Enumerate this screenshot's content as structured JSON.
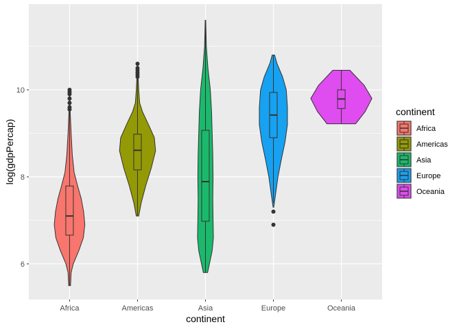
{
  "chart_data": {
    "type": "violin",
    "xlabel": "continent",
    "ylabel": "log(gdpPercap)",
    "categories": [
      "Africa",
      "Americas",
      "Asia",
      "Europe",
      "Oceania"
    ],
    "ylim": [
      5.18,
      11.97
    ],
    "yticks": [
      6,
      8,
      10
    ],
    "grid": true,
    "legend": {
      "title": "continent",
      "position": "right",
      "entries": [
        "Africa",
        "Americas",
        "Asia",
        "Europe",
        "Oceania"
      ]
    },
    "colors": [
      "#F8766D",
      "#949A05",
      "#1BB96C",
      "#17A1F1",
      "#DF4CEF"
    ],
    "series": [
      {
        "name": "Africa",
        "density": [
          [
            5.5,
            0.03
          ],
          [
            5.8,
            0.05
          ],
          [
            6.0,
            0.12
          ],
          [
            6.3,
            0.3
          ],
          [
            6.6,
            0.45
          ],
          [
            6.9,
            0.5
          ],
          [
            7.2,
            0.46
          ],
          [
            7.5,
            0.38
          ],
          [
            7.8,
            0.26
          ],
          [
            8.1,
            0.15
          ],
          [
            8.5,
            0.09
          ],
          [
            9.0,
            0.05
          ],
          [
            9.5,
            0.02
          ],
          [
            10.0,
            0.01
          ]
        ],
        "box": {
          "min": 5.5,
          "q1": 6.66,
          "median": 7.1,
          "q3": 7.79,
          "max": 9.5
        },
        "outliers": [
          9.55,
          9.6,
          9.7,
          9.8,
          9.9,
          9.95,
          10.0
        ]
      },
      {
        "name": "Americas",
        "density": [
          [
            7.1,
            0.04
          ],
          [
            7.4,
            0.12
          ],
          [
            7.8,
            0.27
          ],
          [
            8.2,
            0.45
          ],
          [
            8.6,
            0.59
          ],
          [
            8.9,
            0.55
          ],
          [
            9.2,
            0.36
          ],
          [
            9.5,
            0.16
          ],
          [
            9.7,
            0.07
          ],
          [
            10.0,
            0.04
          ],
          [
            10.3,
            0.02
          ],
          [
            10.6,
            0.01
          ]
        ],
        "box": {
          "min": 7.1,
          "q1": 8.16,
          "median": 8.61,
          "q3": 8.98,
          "max": 10.25
        },
        "outliers": [
          10.3,
          10.35,
          10.4,
          10.45,
          10.5,
          10.6
        ]
      },
      {
        "name": "Asia",
        "density": [
          [
            5.8,
            0.07
          ],
          [
            6.0,
            0.13
          ],
          [
            6.3,
            0.22
          ],
          [
            6.6,
            0.26
          ],
          [
            7.0,
            0.25
          ],
          [
            7.5,
            0.24
          ],
          [
            8.0,
            0.25
          ],
          [
            8.5,
            0.24
          ],
          [
            9.0,
            0.22
          ],
          [
            9.5,
            0.2
          ],
          [
            10.0,
            0.16
          ],
          [
            10.5,
            0.08
          ],
          [
            11.0,
            0.03
          ],
          [
            11.6,
            0.01
          ]
        ],
        "box": {
          "min": 5.8,
          "q1": 6.98,
          "median": 7.89,
          "q3": 9.07,
          "max": 11.6
        },
        "outliers": []
      },
      {
        "name": "Europe",
        "density": [
          [
            7.3,
            0.01
          ],
          [
            7.6,
            0.07
          ],
          [
            8.0,
            0.15
          ],
          [
            8.4,
            0.26
          ],
          [
            8.8,
            0.38
          ],
          [
            9.2,
            0.46
          ],
          [
            9.6,
            0.46
          ],
          [
            10.0,
            0.42
          ],
          [
            10.3,
            0.3
          ],
          [
            10.6,
            0.12
          ],
          [
            10.8,
            0.04
          ]
        ],
        "box": {
          "min": 7.4,
          "q1": 8.9,
          "median": 9.42,
          "q3": 9.94,
          "max": 10.8
        },
        "outliers": [
          7.2,
          6.9
        ]
      },
      {
        "name": "Oceania",
        "density": [
          [
            9.22,
            0.47
          ],
          [
            9.5,
            0.78
          ],
          [
            9.8,
            1.0
          ],
          [
            10.1,
            0.75
          ],
          [
            10.45,
            0.28
          ]
        ],
        "box": {
          "min": 9.22,
          "q1": 9.57,
          "median": 9.79,
          "q3": 10.0,
          "max": 10.45
        },
        "outliers": []
      }
    ]
  }
}
